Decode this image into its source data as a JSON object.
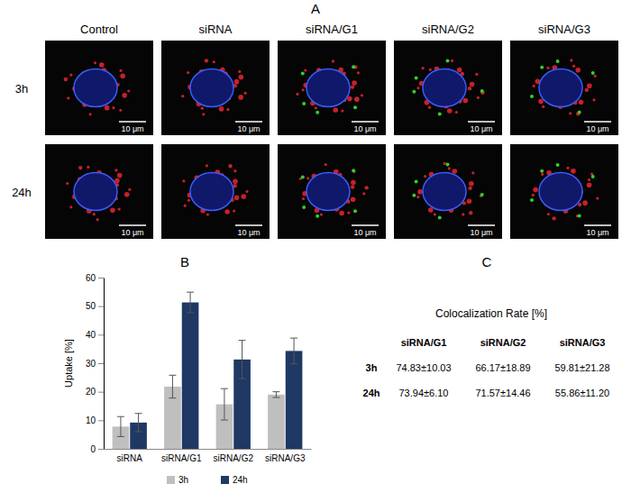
{
  "panel_a": {
    "letter": "A",
    "columns": [
      "Control",
      "siRNA",
      "siRNA/G1",
      "siRNA/G2",
      "siRNA/G3"
    ],
    "rows": [
      "3h",
      "24h"
    ],
    "scale_bar": "10 μm"
  },
  "chart_data": {
    "letter": "B",
    "type": "bar",
    "categories": [
      "siRNA",
      "siRNA/G1",
      "siRNA/G2",
      "siRNA/G3"
    ],
    "ylabel": "Uptake [%]",
    "ylim": [
      0,
      60
    ],
    "yticks": [
      0,
      10,
      20,
      30,
      40,
      50,
      60
    ],
    "legend": "bottom",
    "series": [
      {
        "name": "3h",
        "color": "#bfbfbf",
        "values": [
          7.8,
          21.8,
          15.6,
          19.0
        ],
        "errors": [
          3.5,
          4.0,
          5.5,
          1.0
        ]
      },
      {
        "name": "24h",
        "color": "#1f3864",
        "values": [
          9.2,
          51.3,
          31.3,
          34.3
        ],
        "errors": [
          3.2,
          3.6,
          6.7,
          4.5
        ]
      }
    ]
  },
  "table": {
    "letter": "C",
    "title": "Colocalization Rate [%]",
    "columns": [
      "siRNA/G1",
      "siRNA/G2",
      "siRNA/G3"
    ],
    "rows": [
      {
        "label": "3h",
        "cells": [
          "74.83±10.03",
          "66.17±18.89",
          "59.81±21.28"
        ]
      },
      {
        "label": "24h",
        "cells": [
          "73.94±6.10",
          "71.57±14.46",
          "55.86±11.20"
        ]
      }
    ]
  }
}
